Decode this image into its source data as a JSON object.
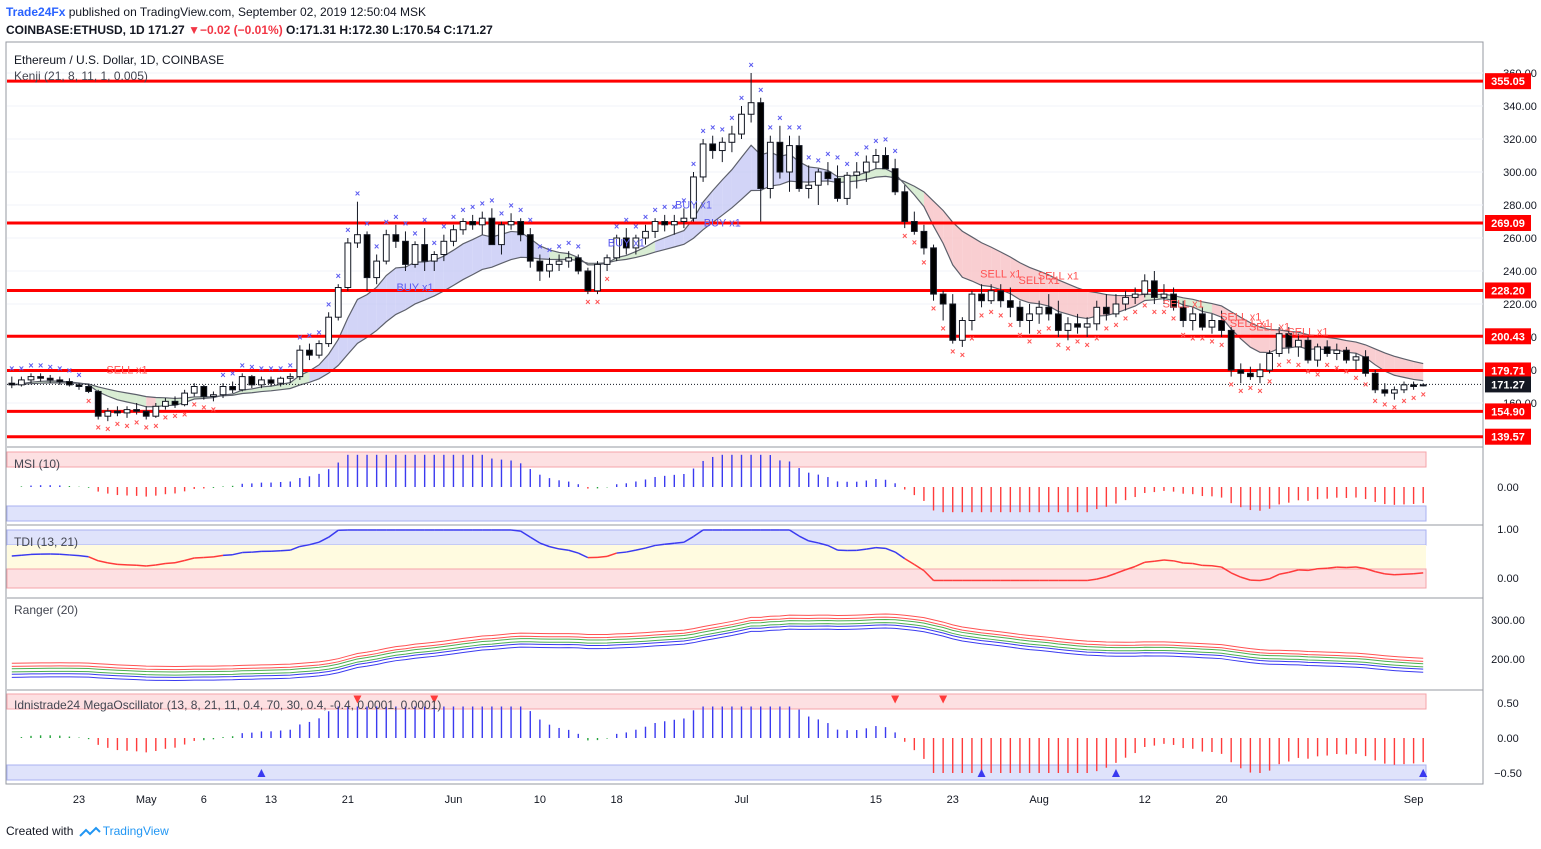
{
  "header": {
    "brand": "Trade24Fx",
    "published": "published on TradingView.com, September 02, 2019 12:50:04 MSK",
    "symbol": "COINBASE:ETHUSD, 1D",
    "last": "171.27",
    "change": "−0.02 (−0.01%)",
    "ohlc": "O:171.31 H:172.30 L:170.54 C:171.27"
  },
  "chart_data": [
    {
      "type": "candlestick",
      "title": "Ethereum / U.S. Dollar, 1D, COINBASE",
      "indicator_label": "Kenji (21, 8, 11, 1, 0.005)",
      "ylim": [
        130,
        370
      ],
      "y_ticks": [
        160,
        180,
        200,
        220,
        240,
        260,
        280,
        300,
        320,
        340,
        360
      ],
      "x_ticks": [
        "23",
        "May",
        "6",
        "13",
        "21",
        "Jun",
        "10",
        "18",
        "Jul",
        "15",
        "23",
        "Aug",
        "12",
        "20",
        "Sep"
      ],
      "price_levels": [
        355.05,
        269.09,
        228.2,
        200.43,
        179.71,
        154.9,
        139.57
      ],
      "last_price": 171.27,
      "signals": [
        {
          "label": "SELL x1",
          "x": "Apr 28",
          "y": 178
        },
        {
          "label": "BUY x1",
          "x": "May 28",
          "y": 228
        },
        {
          "label": "BUY x1",
          "x": "Jun 19",
          "y": 255
        },
        {
          "label": "BUY x1",
          "x": "Jun 26",
          "y": 278
        },
        {
          "label": "BUY x1",
          "x": "Jun 29",
          "y": 267
        },
        {
          "label": "SELL x1",
          "x": "Jul 28",
          "y": 236
        },
        {
          "label": "SELL x1",
          "x": "Aug 1",
          "y": 232
        },
        {
          "label": "SELL x1",
          "x": "Aug 3",
          "y": 235
        },
        {
          "label": "SELL x1",
          "x": "Aug 16",
          "y": 218
        },
        {
          "label": "SELL x1",
          "x": "Aug 22",
          "y": 210
        },
        {
          "label": "SELL x1",
          "x": "Aug 23",
          "y": 206
        },
        {
          "label": "SELL x1",
          "x": "Aug 25",
          "y": 204
        },
        {
          "label": "SELL x1",
          "x": "Aug 29",
          "y": 201
        }
      ],
      "candles_ohlc_approx": [
        [
          172,
          176,
          169,
          171
        ],
        [
          171,
          176,
          170,
          174
        ],
        [
          174,
          178,
          172,
          176
        ],
        [
          176,
          178,
          173,
          175
        ],
        [
          175,
          177,
          172,
          174
        ],
        [
          174,
          176,
          171,
          173
        ],
        [
          173,
          175,
          170,
          171
        ],
        [
          171,
          172,
          168,
          170
        ],
        [
          170,
          171,
          166,
          167
        ],
        [
          167,
          168,
          150,
          152
        ],
        [
          152,
          157,
          149,
          155
        ],
        [
          155,
          158,
          152,
          154
        ],
        [
          154,
          158,
          151,
          156
        ],
        [
          156,
          160,
          153,
          155
        ],
        [
          155,
          158,
          150,
          152
        ],
        [
          152,
          160,
          151,
          158
        ],
        [
          158,
          163,
          156,
          161
        ],
        [
          161,
          164,
          157,
          159
        ],
        [
          159,
          168,
          158,
          166
        ],
        [
          166,
          172,
          164,
          170
        ],
        [
          170,
          171,
          162,
          164
        ],
        [
          164,
          167,
          161,
          165
        ],
        [
          165,
          172,
          163,
          170
        ],
        [
          170,
          173,
          166,
          168
        ],
        [
          168,
          178,
          167,
          176
        ],
        [
          176,
          177,
          169,
          171
        ],
        [
          171,
          176,
          169,
          174
        ],
        [
          174,
          176,
          170,
          172
        ],
        [
          172,
          176,
          170,
          175
        ],
        [
          175,
          178,
          172,
          176
        ],
        [
          176,
          195,
          174,
          192
        ],
        [
          192,
          196,
          186,
          189
        ],
        [
          189,
          198,
          187,
          196
        ],
        [
          196,
          215,
          194,
          212
        ],
        [
          212,
          232,
          210,
          230
        ],
        [
          230,
          260,
          228,
          257
        ],
        [
          257,
          282,
          254,
          262
        ],
        [
          262,
          264,
          228,
          236
        ],
        [
          236,
          250,
          232,
          246
        ],
        [
          246,
          265,
          244,
          262
        ],
        [
          262,
          268,
          254,
          258
        ],
        [
          258,
          264,
          240,
          244
        ],
        [
          244,
          258,
          242,
          256
        ],
        [
          256,
          266,
          240,
          246
        ],
        [
          246,
          252,
          240,
          250
        ],
        [
          250,
          262,
          246,
          258
        ],
        [
          258,
          268,
          255,
          265
        ],
        [
          265,
          272,
          262,
          270
        ],
        [
          270,
          274,
          265,
          268
        ],
        [
          268,
          276,
          262,
          272
        ],
        [
          272,
          278,
          264,
          256
        ],
        [
          256,
          270,
          250,
          268
        ],
        [
          268,
          275,
          265,
          270
        ],
        [
          270,
          272,
          258,
          262
        ],
        [
          262,
          266,
          242,
          246
        ],
        [
          246,
          250,
          234,
          240
        ],
        [
          240,
          248,
          236,
          244
        ],
        [
          244,
          250,
          240,
          246
        ],
        [
          246,
          252,
          242,
          248
        ],
        [
          248,
          250,
          238,
          240
        ],
        [
          240,
          242,
          226,
          228
        ],
        [
          228,
          246,
          226,
          244
        ],
        [
          244,
          250,
          240,
          248
        ],
        [
          248,
          262,
          246,
          260
        ],
        [
          260,
          266,
          250,
          254
        ],
        [
          254,
          262,
          250,
          260
        ],
        [
          260,
          268,
          256,
          264
        ],
        [
          264,
          272,
          260,
          270
        ],
        [
          270,
          274,
          264,
          268
        ],
        [
          268,
          274,
          262,
          270
        ],
        [
          270,
          278,
          266,
          272
        ],
        [
          272,
          300,
          270,
          297
        ],
        [
          297,
          320,
          294,
          317
        ],
        [
          317,
          322,
          308,
          313
        ],
        [
          313,
          321,
          306,
          318
        ],
        [
          318,
          328,
          312,
          323
        ],
        [
          323,
          340,
          320,
          335
        ],
        [
          335,
          360,
          330,
          342
        ],
        [
          342,
          345,
          270,
          290
        ],
        [
          290,
          322,
          284,
          318
        ],
        [
          318,
          328,
          296,
          300
        ],
        [
          300,
          322,
          288,
          316
        ],
        [
          316,
          322,
          288,
          290
        ],
        [
          290,
          304,
          284,
          292
        ],
        [
          292,
          302,
          280,
          300
        ],
        [
          300,
          306,
          292,
          296
        ],
        [
          296,
          304,
          282,
          284
        ],
        [
          284,
          300,
          280,
          298
        ],
        [
          298,
          306,
          290,
          300
        ],
        [
          300,
          310,
          294,
          306
        ],
        [
          306,
          314,
          302,
          310
        ],
        [
          310,
          315,
          302,
          302
        ],
        [
          302,
          308,
          286,
          288
        ],
        [
          288,
          292,
          266,
          270
        ],
        [
          270,
          276,
          262,
          264
        ],
        [
          264,
          268,
          250,
          254
        ],
        [
          254,
          256,
          222,
          226
        ],
        [
          226,
          228,
          210,
          220
        ],
        [
          220,
          226,
          196,
          198
        ],
        [
          198,
          212,
          194,
          210
        ],
        [
          210,
          228,
          204,
          226
        ],
        [
          226,
          232,
          218,
          222
        ],
        [
          222,
          232,
          220,
          228
        ],
        [
          228,
          232,
          218,
          222
        ],
        [
          222,
          230,
          212,
          218
        ],
        [
          218,
          222,
          206,
          210
        ],
        [
          210,
          220,
          202,
          214
        ],
        [
          214,
          222,
          208,
          218
        ],
        [
          218,
          226,
          210,
          214
        ],
        [
          214,
          222,
          200,
          204
        ],
        [
          204,
          212,
          198,
          208
        ],
        [
          208,
          214,
          202,
          206
        ],
        [
          206,
          212,
          200,
          208
        ],
        [
          208,
          222,
          204,
          218
        ],
        [
          218,
          226,
          210,
          214
        ],
        [
          214,
          226,
          212,
          220
        ],
        [
          220,
          228,
          216,
          224
        ],
        [
          224,
          230,
          220,
          226
        ],
        [
          226,
          238,
          224,
          234
        ],
        [
          234,
          240,
          220,
          224
        ],
        [
          224,
          232,
          220,
          226
        ],
        [
          226,
          230,
          216,
          218
        ],
        [
          218,
          222,
          206,
          210
        ],
        [
          210,
          218,
          204,
          214
        ],
        [
          214,
          218,
          204,
          206
        ],
        [
          206,
          214,
          202,
          210
        ],
        [
          210,
          216,
          200,
          204
        ],
        [
          204,
          206,
          176,
          180
        ],
        [
          180,
          184,
          172,
          178
        ],
        [
          178,
          182,
          174,
          176
        ],
        [
          176,
          184,
          172,
          180
        ],
        [
          180,
          192,
          178,
          190
        ],
        [
          190,
          206,
          188,
          202
        ],
        [
          202,
          206,
          190,
          194
        ],
        [
          194,
          202,
          188,
          198
        ],
        [
          198,
          200,
          184,
          186
        ],
        [
          186,
          196,
          182,
          194
        ],
        [
          194,
          198,
          188,
          190
        ],
        [
          190,
          196,
          186,
          192
        ],
        [
          192,
          194,
          184,
          186
        ],
        [
          186,
          190,
          180,
          188
        ],
        [
          188,
          192,
          176,
          178
        ],
        [
          178,
          180,
          166,
          168
        ],
        [
          168,
          172,
          164,
          166
        ],
        [
          166,
          170,
          162,
          168
        ],
        [
          168,
          173,
          166,
          171
        ],
        [
          171,
          173,
          168,
          170
        ],
        [
          171,
          172,
          170,
          171
        ]
      ]
    },
    {
      "type": "bar",
      "title": "MSI (10)",
      "y_ticks": [
        "0.00"
      ],
      "ylim": [
        -1,
        1
      ]
    },
    {
      "type": "line",
      "title": "TDI (13, 21)",
      "y_ticks": [
        "1.00",
        "0.00"
      ],
      "ylim": [
        -0.2,
        1.1
      ]
    },
    {
      "type": "line",
      "title": "Ranger (20)",
      "y_ticks": [
        "300.00",
        "200.00"
      ],
      "ylim": [
        130,
        360
      ]
    },
    {
      "type": "bar",
      "title": "Idnistrade24 MegaOscillator (13, 8, 21, 11, 0.4, 70, 30, 0.4, -0.4, 0.0001, 0.0001)",
      "y_ticks": [
        "0.50",
        "0.00",
        "−0.50"
      ],
      "ylim": [
        -0.65,
        0.65
      ]
    }
  ],
  "footer": {
    "created_with": "Created with",
    "tradingview": "TradingView"
  },
  "colors": {
    "up_candle": "#ffffff",
    "down_candle": "#000000",
    "level_line": "#ff0000",
    "buy_marker": "#5b5bf0",
    "sell_marker": "#ff5252",
    "cloud_up": "#c7c9f5",
    "cloud_down": "#f7c2c6"
  }
}
